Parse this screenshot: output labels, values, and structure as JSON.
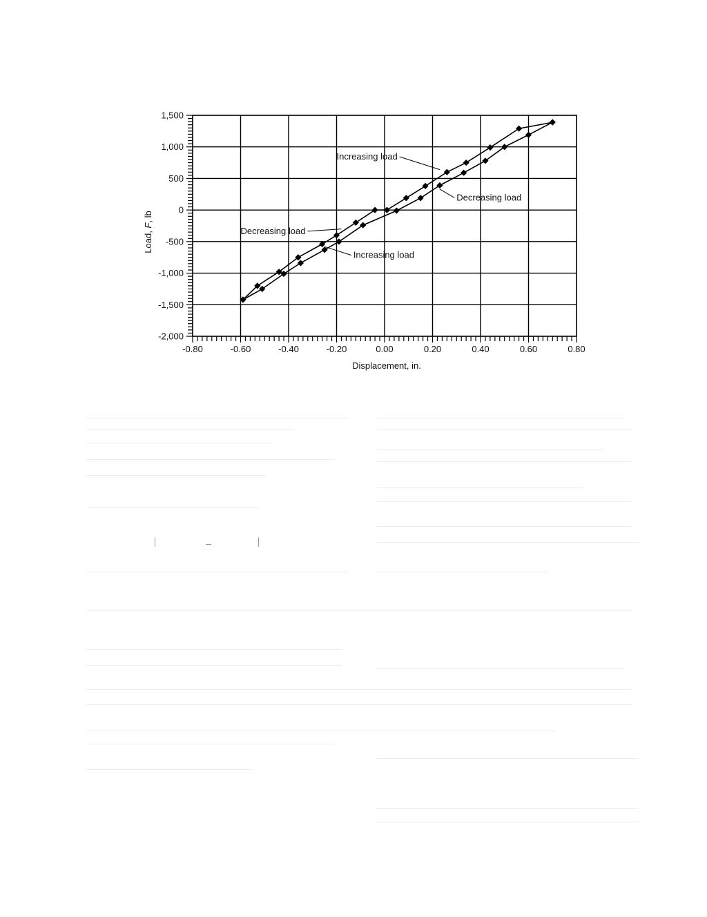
{
  "chart_data": {
    "type": "line",
    "title": "",
    "xlabel": "Displacement, in.",
    "ylabel_parts": [
      "Load, ",
      "F",
      ", lb"
    ],
    "xlim": [
      -0.8,
      0.8
    ],
    "ylim": [
      -2000,
      1500
    ],
    "x_ticks": [
      -0.8,
      -0.6,
      -0.4,
      -0.2,
      0.0,
      0.2,
      0.4,
      0.6,
      0.8
    ],
    "x_tick_labels": [
      "-0.80",
      "-0.60",
      "-0.40",
      "-0.20",
      "0.00",
      "0.20",
      "0.40",
      "0.60",
      "0.80"
    ],
    "y_ticks": [
      -2000,
      -1500,
      -1000,
      -500,
      0,
      500,
      1000,
      1500
    ],
    "y_tick_labels": [
      "-2,000",
      "-1,500",
      "-1,000",
      "-500",
      "0",
      "500",
      "1,000",
      "1,500"
    ],
    "grid": true,
    "marker": "diamond",
    "series": [
      {
        "x": [
          -0.59,
          -0.53,
          -0.44,
          -0.36,
          -0.26,
          -0.2,
          -0.12,
          -0.04,
          0.01,
          0.09,
          0.17,
          0.26,
          0.34,
          0.44,
          0.56,
          0.7
        ],
        "y": [
          -1420,
          -1200,
          -980,
          -750,
          -540,
          -400,
          -200,
          0,
          0,
          190,
          380,
          600,
          750,
          990,
          1290,
          1390
        ]
      },
      {
        "x": [
          0.7,
          0.6,
          0.5,
          0.42,
          0.33,
          0.23,
          0.15,
          0.05,
          -0.09,
          -0.19,
          -0.25,
          -0.35,
          -0.42,
          -0.51,
          -0.59
        ],
        "y": [
          1390,
          1190,
          1000,
          780,
          590,
          390,
          190,
          -10,
          -240,
          -500,
          -630,
          -840,
          -1010,
          -1250,
          -1420
        ]
      }
    ],
    "annotations": [
      {
        "text": "Increasing load",
        "x": -0.2,
        "y": 800,
        "arrow_to": [
          0.23,
          640
        ]
      },
      {
        "text": "Decreasing load",
        "x": 0.3,
        "y": 150,
        "arrow_to": [
          0.23,
          330
        ]
      },
      {
        "text": "Decreasing load",
        "x": -0.6,
        "y": -380,
        "arrow_to": [
          -0.18,
          -300
        ]
      },
      {
        "text": "Increasing load",
        "x": -0.13,
        "y": -760,
        "arrow_to": [
          -0.25,
          -580
        ]
      }
    ]
  }
}
